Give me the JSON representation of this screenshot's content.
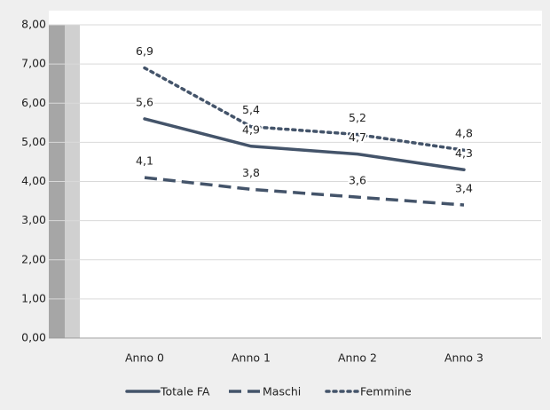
{
  "chart_data": {
    "type": "line",
    "categories": [
      "Anno 0",
      "Anno 1",
      "Anno 2",
      "Anno 3"
    ],
    "series": [
      {
        "name": "Totale FA",
        "color": "#44546a",
        "dash": "solid",
        "values": [
          5.6,
          4.9,
          4.7,
          4.3
        ],
        "value_labels": [
          "5,6",
          "4,9",
          "4,7",
          "4,3"
        ]
      },
      {
        "name": "Maschi",
        "color": "#44546a",
        "dash": "dashed",
        "values": [
          4.1,
          3.8,
          3.6,
          3.4
        ],
        "value_labels": [
          "4,1",
          "3,8",
          "3,6",
          "3,4"
        ]
      },
      {
        "name": "Femmine",
        "color": "#44546a",
        "dash": "dotted",
        "values": [
          6.9,
          5.4,
          5.2,
          4.8
        ],
        "value_labels": [
          "6,9",
          "5,4",
          "5,2",
          "4,8"
        ]
      }
    ],
    "ylim": [
      0,
      8
    ],
    "yticks": [
      {
        "value": 0,
        "label": "0,00"
      },
      {
        "value": 1,
        "label": "1,00"
      },
      {
        "value": 2,
        "label": "2,00"
      },
      {
        "value": 3,
        "label": "3,00"
      },
      {
        "value": 4,
        "label": "4,00"
      },
      {
        "value": 5,
        "label": "5,00"
      },
      {
        "value": 6,
        "label": "6,00"
      },
      {
        "value": 7,
        "label": "7,00"
      },
      {
        "value": 8,
        "label": "8,00"
      }
    ],
    "grid": true,
    "legend": "bottom"
  }
}
